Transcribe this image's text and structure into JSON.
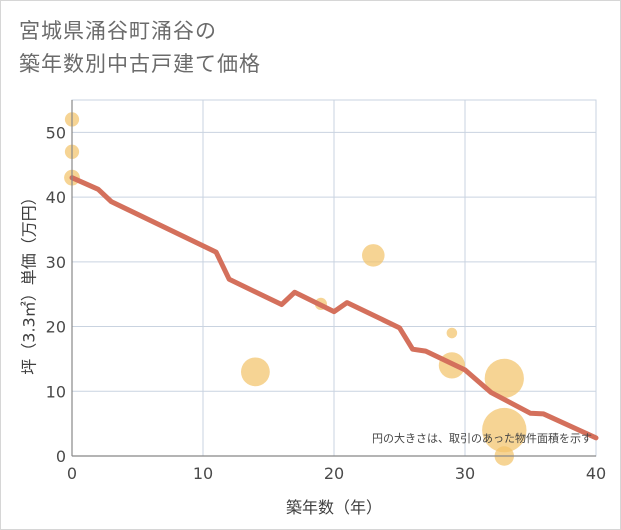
{
  "title": {
    "line1": "宮城県涌谷町涌谷の",
    "line2": "築年数別中古戸建て価格"
  },
  "colors": {
    "grid": "#c9d3e0",
    "line": "#d4705c",
    "bubble": "#f2c36b",
    "axis": "#888888"
  },
  "chart_data": {
    "type": "scatter",
    "title": "宮城県涌谷町涌谷の築年数別中古戸建て価格",
    "xlabel": "築年数（年）",
    "ylabel": "坪（3.3㎡）単価（万円）",
    "xlim": [
      0,
      40
    ],
    "ylim": [
      0,
      55
    ],
    "xticks": [
      0,
      10,
      20,
      30,
      40
    ],
    "yticks": [
      0,
      10,
      20,
      30,
      40,
      50
    ],
    "note": "円の大きさは、取引のあった物件面積を示す",
    "grid": true,
    "trend_line": {
      "name": "trend",
      "x": [
        0,
        2,
        3,
        11,
        12,
        16,
        17,
        20,
        21,
        25,
        26,
        27,
        30,
        32,
        35,
        36,
        40
      ],
      "y": [
        43,
        41.2,
        39.3,
        31.5,
        27.3,
        23.4,
        25.3,
        22.3,
        23.7,
        19.8,
        16.5,
        16.2,
        13.3,
        9.8,
        6.6,
        6.5,
        2.8
      ]
    },
    "bubbles": {
      "name": "transactions",
      "x": [
        0,
        0,
        0,
        14,
        19,
        23,
        29,
        29,
        33,
        33,
        33
      ],
      "y": [
        52,
        47,
        43,
        13,
        23.5,
        31,
        19,
        14,
        12,
        4,
        0
      ],
      "size": [
        1.2,
        1.2,
        1.5,
        4.0,
        0.8,
        2.8,
        0.5,
        3.5,
        6.0,
        7.0,
        2.2
      ]
    }
  }
}
